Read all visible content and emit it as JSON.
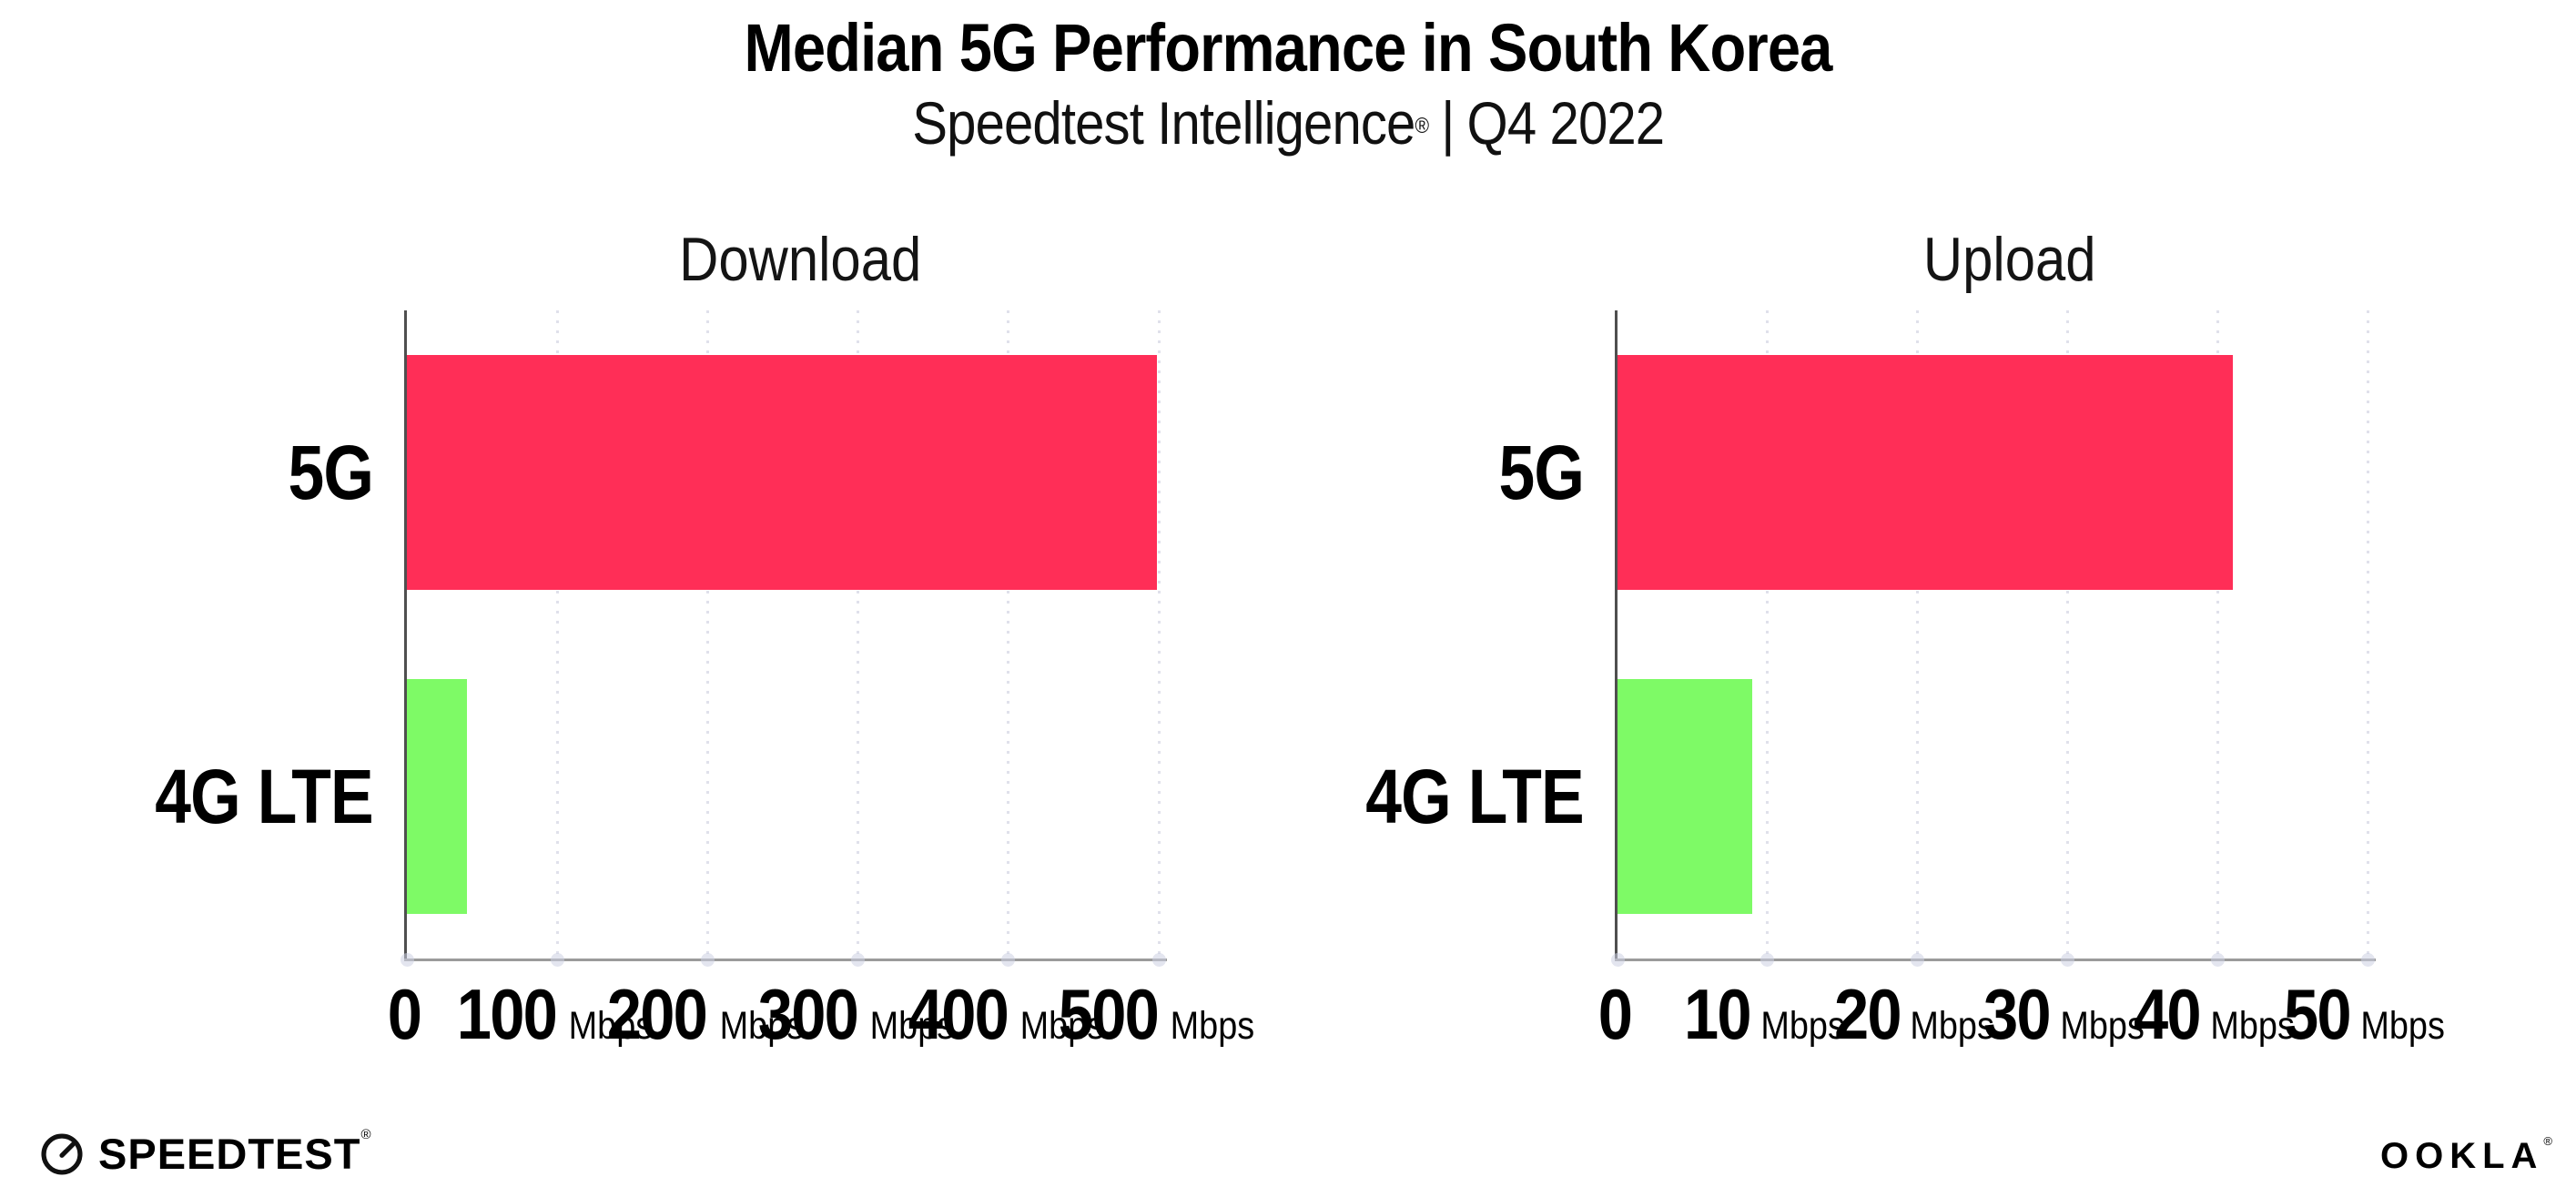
{
  "header": {
    "title": "Median 5G Performance in South Korea",
    "subtitle_brand": "Speedtest Intelligence",
    "subtitle_reg": "®",
    "subtitle_sep": "|",
    "subtitle_period": "Q4 2022"
  },
  "colors": {
    "bar_5g": "#FF2E57",
    "bar_4g_lte": "#7EFA66",
    "gridline": "#E0E1EB",
    "y_axis": "#4F4F4F",
    "x_axis": "#9B9B9B",
    "text": "#000000"
  },
  "chart_data": [
    {
      "type": "bar",
      "orientation": "horizontal",
      "title": "Download",
      "categories": [
        "5G",
        "4G LTE"
      ],
      "values": [
        499,
        40
      ],
      "unit": "Mbps",
      "xlim": [
        0,
        500
      ],
      "xticks": [
        0,
        100,
        200,
        300,
        400,
        500
      ],
      "grid": true,
      "legend": "none",
      "bar_colors": [
        "#FF2E57",
        "#7EFA66"
      ]
    },
    {
      "type": "bar",
      "orientation": "horizontal",
      "title": "Upload",
      "categories": [
        "5G",
        "4G LTE"
      ],
      "values": [
        41,
        9
      ],
      "unit": "Mbps",
      "xlim": [
        0,
        50
      ],
      "xticks": [
        0,
        10,
        20,
        30,
        40,
        50
      ],
      "grid": true,
      "legend": "none",
      "bar_colors": [
        "#FF2E57",
        "#7EFA66"
      ]
    }
  ],
  "footer": {
    "speedtest_label": "SPEEDTEST",
    "speedtest_reg": "®",
    "ookla_label": "OOKLA",
    "ookla_reg": "®"
  }
}
